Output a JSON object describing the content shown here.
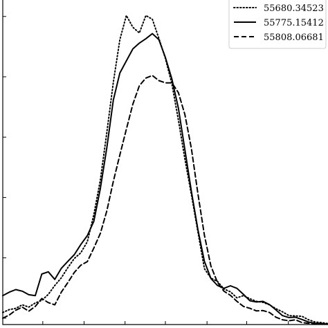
{
  "chart_data": {
    "type": "line",
    "title": "",
    "xlabel": "",
    "ylabel": "",
    "xlim": [
      0,
      100
    ],
    "ylim": [
      0,
      100
    ],
    "grid": false,
    "legend_placement": "top-right",
    "series": [
      {
        "name": "55680.34523",
        "style": "dotted",
        "color": "#000000",
        "x": [
          0,
          2,
          4,
          6,
          8,
          10,
          12,
          14,
          16,
          18,
          20,
          22,
          24,
          26,
          28,
          30,
          32,
          34,
          36,
          38,
          40,
          42,
          44,
          46,
          48,
          50,
          52,
          54,
          56,
          58,
          60,
          62,
          64,
          66,
          68,
          70,
          72,
          74,
          76,
          78,
          80,
          82,
          84,
          86,
          88,
          90,
          92,
          94,
          96,
          98,
          100
        ],
        "y": [
          3.8,
          4.7,
          5.1,
          6.2,
          5.5,
          6.8,
          7.6,
          9.5,
          12.3,
          14.7,
          17.9,
          20.8,
          22.6,
          26.1,
          34.6,
          45.5,
          60.5,
          76.3,
          89.7,
          97.3,
          93.6,
          91.8,
          97.3,
          96.1,
          90.1,
          83.8,
          75.8,
          64.4,
          52.1,
          40.9,
          29.2,
          17.6,
          14.6,
          13.6,
          11.2,
          10.3,
          8.4,
          9.1,
          8.1,
          7.3,
          7.0,
          6.2,
          5.0,
          4.0,
          2.8,
          2.7,
          2.6,
          1.5,
          0.8,
          0.6,
          0.3
        ]
      },
      {
        "name": "55775.15412",
        "style": "solid",
        "color": "#000000",
        "x": [
          0,
          2,
          4,
          6,
          8,
          10,
          12,
          14,
          16,
          18,
          20,
          22,
          24,
          26,
          28,
          30,
          32,
          34,
          36,
          38,
          40,
          42,
          44,
          46,
          48,
          50,
          52,
          54,
          56,
          58,
          60,
          62,
          64,
          66,
          68,
          70,
          72,
          74,
          76,
          78,
          80,
          82,
          84,
          86,
          88,
          90,
          92,
          94,
          96,
          98,
          100
        ],
        "y": [
          9.1,
          10.2,
          11.0,
          10.5,
          9.4,
          9.1,
          15.9,
          16.6,
          14.2,
          17.7,
          19.9,
          22.0,
          25.2,
          28.0,
          32.5,
          42.8,
          55.7,
          70.7,
          79.2,
          83.0,
          86.8,
          88.6,
          90.0,
          91.6,
          89.7,
          84.1,
          77.3,
          68.1,
          55.0,
          41.9,
          29.9,
          19.9,
          14.5,
          12.3,
          11.4,
          12.2,
          11.4,
          9.5,
          7.5,
          7.1,
          7.3,
          6.3,
          4.6,
          2.8,
          2.2,
          2.3,
          1.6,
          0.8,
          0.4,
          0.3,
          0.1
        ]
      },
      {
        "name": "55808.06681",
        "style": "dashed",
        "color": "#000000",
        "x": [
          0,
          2,
          4,
          6,
          8,
          10,
          12,
          14,
          16,
          18,
          20,
          22,
          24,
          26,
          28,
          30,
          32,
          34,
          36,
          38,
          40,
          42,
          44,
          46,
          48,
          50,
          52,
          54,
          56,
          58,
          60,
          62,
          64,
          66,
          68,
          70,
          72,
          74,
          76,
          78,
          80,
          82,
          84,
          86,
          88,
          90,
          92,
          94,
          96,
          98,
          100
        ],
        "y": [
          2.0,
          3.0,
          4.5,
          5.5,
          4.2,
          5.7,
          8.2,
          6.9,
          6.2,
          10.2,
          13.2,
          16.4,
          18.7,
          19.8,
          24.1,
          28.7,
          35.8,
          45.1,
          53.4,
          61.5,
          69.4,
          75.2,
          77.6,
          78.4,
          76.8,
          76.1,
          76.1,
          73.0,
          66.1,
          55.4,
          41.2,
          28.1,
          18.4,
          13.3,
          10.5,
          9.2,
          7.3,
          5.7,
          5.1,
          4.3,
          4.4,
          3.8,
          2.3,
          1.5,
          1.2,
          1.5,
          0.6,
          0.4,
          0.3,
          0.2,
          0.1
        ]
      }
    ]
  }
}
